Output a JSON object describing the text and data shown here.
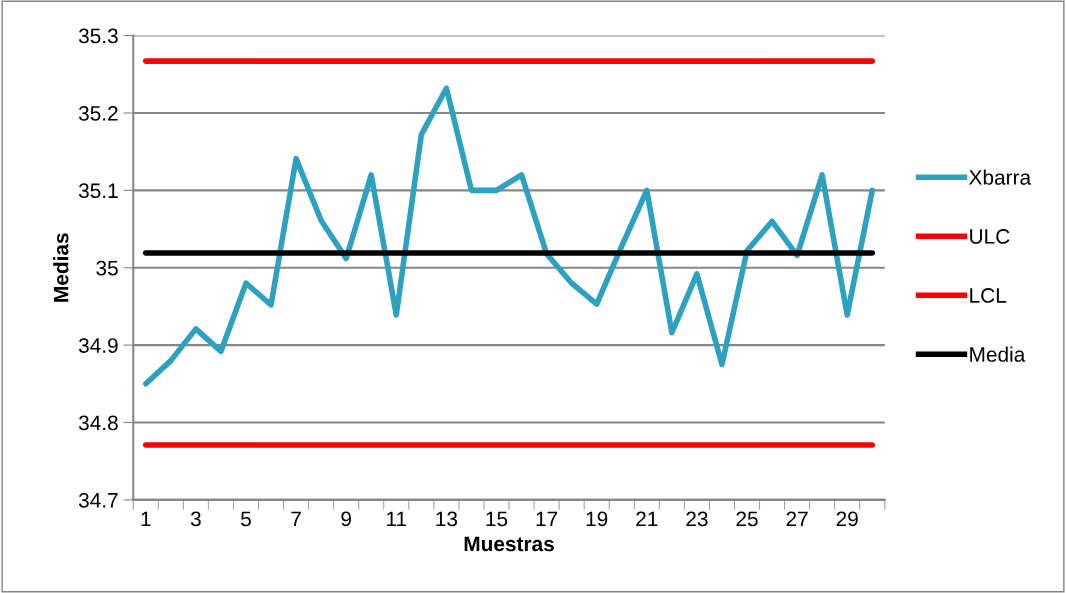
{
  "chart_data": {
    "type": "line",
    "xlabel": "Muestras",
    "ylabel": "Medias",
    "categories": [
      "1",
      null,
      "3",
      null,
      "5",
      null,
      "7",
      null,
      "9",
      null,
      "11",
      null,
      "13",
      null,
      "15",
      null,
      "17",
      null,
      "19",
      null,
      "21",
      null,
      "23",
      null,
      "25",
      null,
      "27",
      null,
      "29",
      null
    ],
    "series": [
      {
        "name": "Xbarra",
        "color": "#2ca1c0",
        "values": [
          34.85,
          34.88,
          34.921,
          34.892,
          34.98,
          34.952,
          35.141,
          35.061,
          35.012,
          35.12,
          34.939,
          35.172,
          35.232,
          35.1,
          35.1,
          35.12,
          35.018,
          34.98,
          34.953,
          35.028,
          35.1,
          34.916,
          34.992,
          34.875,
          35.022,
          35.06,
          35.016,
          35.12,
          34.939,
          35.1
        ]
      },
      {
        "name": "ULC",
        "color": "#ff0000",
        "values": [
          35.267,
          35.267,
          35.267,
          35.267,
          35.267,
          35.267,
          35.267,
          35.267,
          35.267,
          35.267,
          35.267,
          35.267,
          35.267,
          35.267,
          35.267,
          35.267,
          35.267,
          35.267,
          35.267,
          35.267,
          35.267,
          35.267,
          35.267,
          35.267,
          35.267,
          35.267,
          35.267,
          35.267,
          35.267,
          35.267
        ]
      },
      {
        "name": "LCL",
        "color": "#ff0000",
        "values": [
          34.771,
          34.771,
          34.771,
          34.771,
          34.771,
          34.771,
          34.771,
          34.771,
          34.771,
          34.771,
          34.771,
          34.771,
          34.771,
          34.771,
          34.771,
          34.771,
          34.771,
          34.771,
          34.771,
          34.771,
          34.771,
          34.771,
          34.771,
          34.771,
          34.771,
          34.771,
          34.771,
          34.771,
          34.771,
          34.771
        ]
      },
      {
        "name": "Media",
        "color": "#000000",
        "values": [
          35.019,
          35.019,
          35.019,
          35.019,
          35.019,
          35.019,
          35.019,
          35.019,
          35.019,
          35.019,
          35.019,
          35.019,
          35.019,
          35.019,
          35.019,
          35.019,
          35.019,
          35.019,
          35.019,
          35.019,
          35.019,
          35.019,
          35.019,
          35.019,
          35.019,
          35.019,
          35.019,
          35.019,
          35.019,
          35.019
        ]
      }
    ],
    "ylim": [
      34.7,
      35.3
    ],
    "yticks": [
      34.7,
      34.8,
      34.9,
      35,
      35.1,
      35.2,
      35.3
    ],
    "grid": "y",
    "legend": "right",
    "marker": "none",
    "line_style": "solid"
  }
}
